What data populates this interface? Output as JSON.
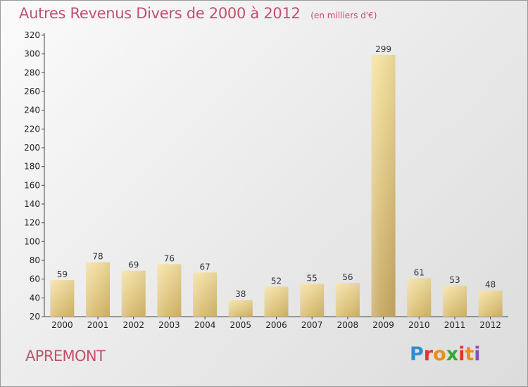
{
  "header": {
    "title": "Autres Revenus Divers de 2000 à 2012",
    "subtitle": "(en milliers d'€)"
  },
  "footer": {
    "commune": "APREMONT",
    "logo_letters": [
      "P",
      "r",
      "o",
      "x",
      "i",
      "t",
      "i"
    ],
    "logo_colors": [
      "#2f8fd0",
      "#e3362b",
      "#f08c1a",
      "#3aa536",
      "#e3362b",
      "#f08c1a",
      "#8a4fb0"
    ]
  },
  "colors": {
    "accent": "#c2506e",
    "bar_light": "#f1dc96",
    "bar_dark": "#d9bc6b",
    "bar_highlight_dark": "#c4a562"
  },
  "chart_data": {
    "type": "bar",
    "categories": [
      "2000",
      "2001",
      "2002",
      "2003",
      "2004",
      "2005",
      "2006",
      "2007",
      "2008",
      "2009",
      "2010",
      "2011",
      "2012"
    ],
    "values": [
      59,
      78,
      69,
      76,
      67,
      38,
      52,
      55,
      56,
      299,
      61,
      53,
      48
    ],
    "title": "Autres Revenus Divers de 2000 à 2012",
    "subtitle": "(en milliers d'€)",
    "xlabel": "",
    "ylabel": "",
    "ylim": [
      20,
      320
    ],
    "yticks": [
      20,
      40,
      60,
      80,
      100,
      120,
      140,
      160,
      180,
      200,
      220,
      240,
      260,
      280,
      300,
      320
    ],
    "grid": false,
    "legend": "none"
  }
}
